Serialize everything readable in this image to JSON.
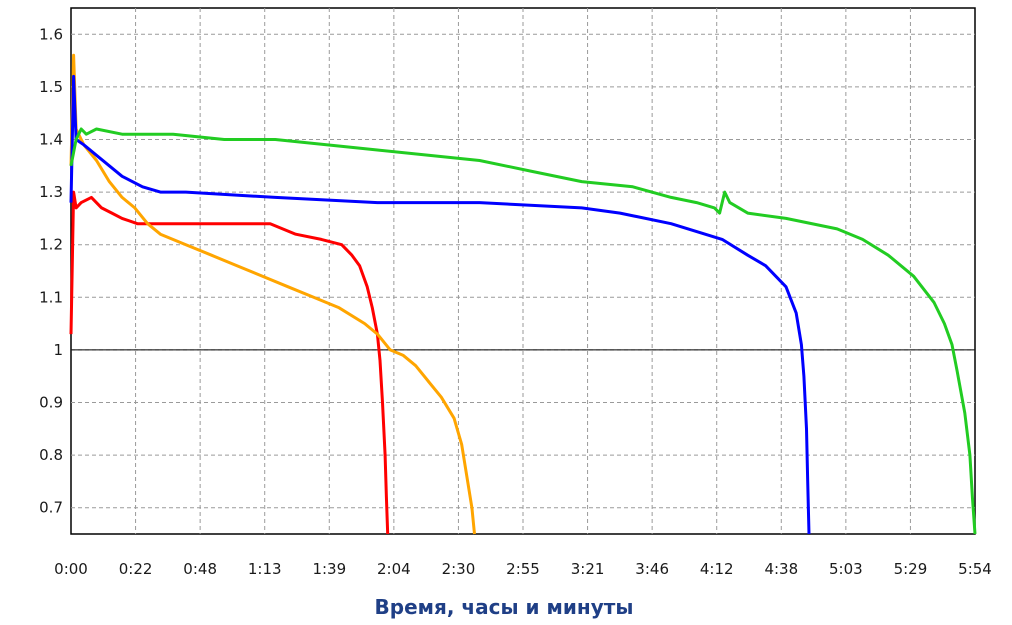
{
  "chart_data": {
    "type": "line",
    "title": "",
    "xlabel": "Время, часы и минуты",
    "ylabel": "",
    "xlim": [
      0,
      354
    ],
    "ylim": [
      0.65,
      1.65
    ],
    "x_tick_labels": [
      "0:00",
      "0:22",
      "0:48",
      "1:13",
      "1:39",
      "2:04",
      "2:30",
      "2:55",
      "3:21",
      "3:46",
      "4:12",
      "4:38",
      "5:03",
      "5:29",
      "5:54"
    ],
    "y_ticks": [
      0.7,
      0.8,
      0.9,
      1.0,
      1.1,
      1.2,
      1.3,
      1.4,
      1.5,
      1.6
    ],
    "y_tick_labels": [
      "0.7",
      "0.8",
      "0.9",
      "1",
      "1.1",
      "1.2",
      "1.3",
      "1.4",
      "1.5",
      "1.6"
    ],
    "reference_line": 1.0,
    "grid": true,
    "legend": "none",
    "series": [
      {
        "color": "#ff0000",
        "points": [
          [
            0,
            1.03
          ],
          [
            1,
            1.3
          ],
          [
            2,
            1.27
          ],
          [
            4,
            1.28
          ],
          [
            8,
            1.29
          ],
          [
            12,
            1.27
          ],
          [
            16,
            1.26
          ],
          [
            20,
            1.25
          ],
          [
            26,
            1.24
          ],
          [
            40,
            1.24
          ],
          [
            60,
            1.24
          ],
          [
            70,
            1.24
          ],
          [
            78,
            1.24
          ],
          [
            88,
            1.22
          ],
          [
            98,
            1.21
          ],
          [
            106,
            1.2
          ],
          [
            110,
            1.18
          ],
          [
            113,
            1.16
          ],
          [
            116,
            1.12
          ],
          [
            118,
            1.08
          ],
          [
            120,
            1.03
          ],
          [
            121,
            0.98
          ],
          [
            122,
            0.9
          ],
          [
            123,
            0.8
          ],
          [
            123.5,
            0.72
          ],
          [
            124,
            0.65
          ]
        ]
      },
      {
        "color": "#ffa500",
        "points": [
          [
            0,
            1.35
          ],
          [
            1,
            1.56
          ],
          [
            2,
            1.42
          ],
          [
            5,
            1.39
          ],
          [
            10,
            1.36
          ],
          [
            15,
            1.32
          ],
          [
            20,
            1.29
          ],
          [
            25,
            1.27
          ],
          [
            30,
            1.24
          ],
          [
            35,
            1.22
          ],
          [
            45,
            1.2
          ],
          [
            55,
            1.18
          ],
          [
            65,
            1.16
          ],
          [
            75,
            1.14
          ],
          [
            85,
            1.12
          ],
          [
            95,
            1.1
          ],
          [
            105,
            1.08
          ],
          [
            115,
            1.05
          ],
          [
            120,
            1.03
          ],
          [
            125,
            1.0
          ],
          [
            130,
            0.99
          ],
          [
            135,
            0.97
          ],
          [
            140,
            0.94
          ],
          [
            145,
            0.91
          ],
          [
            150,
            0.87
          ],
          [
            153,
            0.82
          ],
          [
            155,
            0.76
          ],
          [
            157,
            0.7
          ],
          [
            158,
            0.65
          ]
        ]
      },
      {
        "color": "#0000ff",
        "points": [
          [
            0,
            1.28
          ],
          [
            1,
            1.52
          ],
          [
            2,
            1.4
          ],
          [
            5,
            1.39
          ],
          [
            10,
            1.37
          ],
          [
            15,
            1.35
          ],
          [
            20,
            1.33
          ],
          [
            28,
            1.31
          ],
          [
            35,
            1.3
          ],
          [
            45,
            1.3
          ],
          [
            80,
            1.29
          ],
          [
            120,
            1.28
          ],
          [
            160,
            1.28
          ],
          [
            200,
            1.27
          ],
          [
            215,
            1.26
          ],
          [
            235,
            1.24
          ],
          [
            255,
            1.21
          ],
          [
            265,
            1.18
          ],
          [
            272,
            1.16
          ],
          [
            280,
            1.12
          ],
          [
            284,
            1.07
          ],
          [
            286,
            1.01
          ],
          [
            287,
            0.95
          ],
          [
            288,
            0.85
          ],
          [
            288.5,
            0.75
          ],
          [
            289,
            0.65
          ]
        ]
      },
      {
        "color": "#22cc22",
        "points": [
          [
            0,
            1.35
          ],
          [
            2,
            1.4
          ],
          [
            4,
            1.42
          ],
          [
            6,
            1.41
          ],
          [
            10,
            1.42
          ],
          [
            20,
            1.41
          ],
          [
            40,
            1.41
          ],
          [
            60,
            1.4
          ],
          [
            80,
            1.4
          ],
          [
            100,
            1.39
          ],
          [
            120,
            1.38
          ],
          [
            140,
            1.37
          ],
          [
            160,
            1.36
          ],
          [
            180,
            1.34
          ],
          [
            200,
            1.32
          ],
          [
            220,
            1.31
          ],
          [
            235,
            1.29
          ],
          [
            245,
            1.28
          ],
          [
            252,
            1.27
          ],
          [
            254,
            1.26
          ],
          [
            256,
            1.3
          ],
          [
            258,
            1.28
          ],
          [
            265,
            1.26
          ],
          [
            280,
            1.25
          ],
          [
            300,
            1.23
          ],
          [
            310,
            1.21
          ],
          [
            320,
            1.18
          ],
          [
            330,
            1.14
          ],
          [
            338,
            1.09
          ],
          [
            342,
            1.05
          ],
          [
            345,
            1.01
          ],
          [
            347,
            0.96
          ],
          [
            350,
            0.88
          ],
          [
            352,
            0.8
          ],
          [
            353,
            0.72
          ],
          [
            354,
            0.65
          ]
        ]
      }
    ]
  }
}
